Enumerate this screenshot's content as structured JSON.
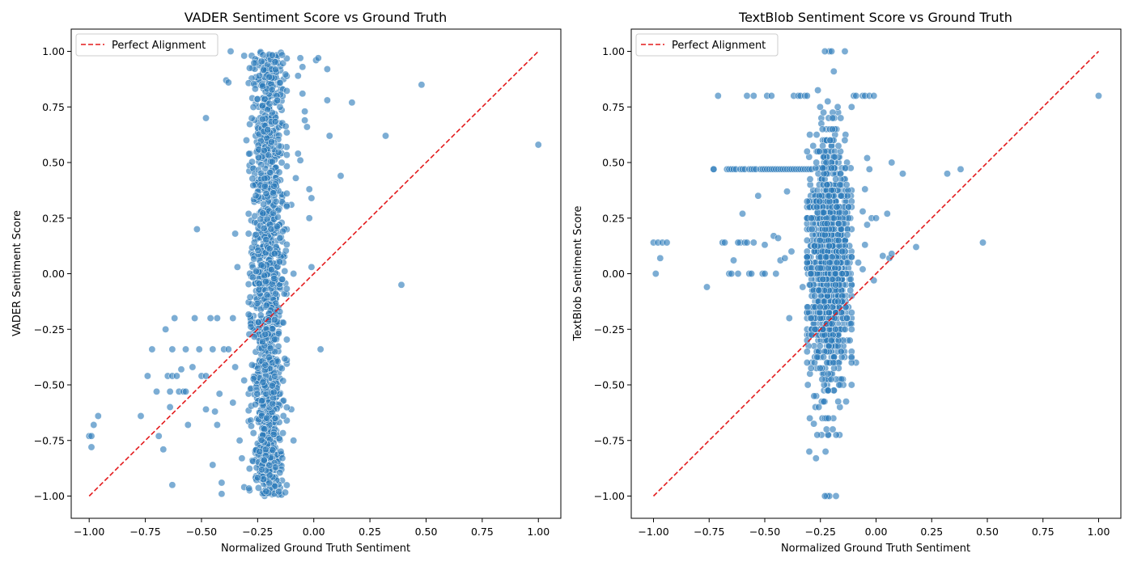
{
  "chart_data": [
    {
      "type": "scatter",
      "title": "VADER Sentiment Score vs Ground Truth",
      "xlabel": "Normalized Ground Truth Sentiment",
      "ylabel": "VADER Sentiment Score",
      "xlim": [
        -1.08,
        1.1
      ],
      "ylim": [
        -1.1,
        1.1
      ],
      "xticks": [
        "−1.00",
        "−0.75",
        "−0.50",
        "−0.25",
        "0.00",
        "0.25",
        "0.50",
        "0.75",
        "1.00"
      ],
      "yticks": [
        "−1.00",
        "−0.75",
        "−0.50",
        "−0.25",
        "0.00",
        "0.25",
        "0.50",
        "0.75",
        "1.00"
      ],
      "grid": false,
      "legend": {
        "position": "top-left",
        "entries": [
          "Perfect Alignment"
        ]
      },
      "reference_line": {
        "name": "Perfect Alignment",
        "style": "dashed",
        "color": "#e31a1c",
        "from": [
          -1,
          -1
        ],
        "to": [
          1,
          1
        ]
      },
      "point_color": "#2b7bba",
      "series": [
        {
          "points": [
            [
              -1.0,
              -0.73
            ],
            [
              -0.99,
              -0.78
            ],
            [
              -0.98,
              -0.68
            ],
            [
              -0.96,
              -0.64
            ],
            [
              -0.99,
              -0.73
            ],
            [
              -0.77,
              -0.64
            ],
            [
              -0.74,
              -0.46
            ],
            [
              -0.7,
              -0.53
            ],
            [
              -0.69,
              -0.73
            ],
            [
              -0.67,
              -0.79
            ],
            [
              -0.65,
              -0.46
            ],
            [
              -0.64,
              -0.53
            ],
            [
              -0.64,
              -0.6
            ],
            [
              -0.63,
              -0.46
            ],
            [
              -0.63,
              -0.95
            ],
            [
              -0.61,
              -0.46
            ],
            [
              -0.6,
              -0.53
            ],
            [
              -0.58,
              -0.53
            ],
            [
              -0.57,
              -0.53
            ],
            [
              -0.56,
              -0.68
            ],
            [
              -0.54,
              -0.42
            ],
            [
              -0.53,
              -0.2
            ],
            [
              -0.52,
              0.2
            ],
            [
              -0.51,
              -0.34
            ],
            [
              -0.5,
              -0.46
            ],
            [
              -0.48,
              0.7
            ],
            [
              -0.48,
              -0.61
            ],
            [
              -0.46,
              -0.2
            ],
            [
              -0.45,
              -0.86
            ],
            [
              -0.43,
              -0.68
            ],
            [
              -0.42,
              -0.54
            ],
            [
              -0.41,
              -0.94
            ],
            [
              -0.41,
              -0.99
            ],
            [
              -0.4,
              -0.34
            ],
            [
              -0.39,
              0.87
            ],
            [
              -0.38,
              -0.34
            ],
            [
              -0.38,
              0.86
            ],
            [
              -0.37,
              1.0
            ],
            [
              -0.36,
              -0.2
            ],
            [
              -0.35,
              -0.42
            ],
            [
              -0.35,
              0.18
            ],
            [
              -0.34,
              0.03
            ],
            [
              -0.33,
              -0.75
            ],
            [
              -0.32,
              -0.83
            ],
            [
              -0.31,
              0.98
            ],
            [
              -0.31,
              -0.96
            ],
            [
              -0.3,
              0.6
            ],
            [
              -0.29,
              -0.54
            ],
            [
              -0.43,
              -0.2
            ],
            [
              -0.45,
              -0.34
            ],
            [
              -0.63,
              -0.34
            ],
            [
              -0.57,
              -0.34
            ],
            [
              -0.72,
              -0.34
            ],
            [
              -0.59,
              -0.43
            ],
            [
              -0.66,
              -0.25
            ],
            [
              -0.62,
              -0.2
            ],
            [
              -0.36,
              -0.58
            ],
            [
              -0.31,
              -0.48
            ],
            [
              -0.44,
              -0.62
            ],
            [
              -0.48,
              -0.46
            ],
            [
              -0.06,
              0.97
            ],
            [
              -0.05,
              0.93
            ],
            [
              0.01,
              0.96
            ],
            [
              0.02,
              0.97
            ],
            [
              0.06,
              0.92
            ],
            [
              0.06,
              0.78
            ],
            [
              0.07,
              0.62
            ],
            [
              0.17,
              0.77
            ],
            [
              0.12,
              0.44
            ],
            [
              0.32,
              0.62
            ],
            [
              0.48,
              0.85
            ],
            [
              1.0,
              0.58
            ],
            [
              0.39,
              -0.05
            ],
            [
              0.03,
              -0.34
            ],
            [
              -0.02,
              0.25
            ],
            [
              -0.01,
              0.03
            ],
            [
              -0.02,
              0.38
            ],
            [
              -0.01,
              0.34
            ],
            [
              -0.03,
              0.66
            ],
            [
              -0.06,
              0.51
            ],
            [
              -0.07,
              0.54
            ],
            [
              -0.05,
              0.81
            ],
            [
              -0.09,
              0.0
            ],
            [
              -0.1,
              -0.61
            ],
            [
              -0.09,
              -0.75
            ],
            [
              -0.1,
              0.31
            ],
            [
              -0.08,
              0.43
            ],
            [
              -0.04,
              0.69
            ],
            [
              -0.04,
              0.73
            ],
            [
              -0.07,
              0.89
            ]
          ]
        },
        {
          "name": "VADER dense band",
          "band": true,
          "x_range": [
            -0.29,
            -0.12
          ],
          "y_range": [
            -1.0,
            1.0
          ],
          "count": 1300
        }
      ]
    },
    {
      "type": "scatter",
      "title": "TextBlob Sentiment Score vs Ground Truth",
      "xlabel": "Normalized Ground Truth Sentiment",
      "ylabel": "TextBlob Sentiment Score",
      "xlim": [
        -1.1,
        1.1
      ],
      "ylim": [
        -1.1,
        1.1
      ],
      "xticks": [
        "−1.00",
        "−0.75",
        "−0.50",
        "−0.25",
        "0.00",
        "0.25",
        "0.50",
        "0.75",
        "1.00"
      ],
      "yticks": [
        "−1.00",
        "−0.75",
        "−0.50",
        "−0.25",
        "0.00",
        "0.25",
        "0.50",
        "0.75",
        "1.00"
      ],
      "grid": false,
      "legend": {
        "position": "top-left",
        "entries": [
          "Perfect Alignment"
        ]
      },
      "reference_line": {
        "name": "Perfect Alignment",
        "style": "dashed",
        "color": "#e31a1c",
        "from": [
          -1,
          -1
        ],
        "to": [
          1,
          1
        ]
      },
      "point_color": "#2b7bba",
      "series": [
        {
          "points": [
            [
              -1.0,
              0.14
            ],
            [
              -0.99,
              0.0
            ],
            [
              -0.98,
              0.14
            ],
            [
              -0.97,
              0.07
            ],
            [
              -0.96,
              0.14
            ],
            [
              -0.94,
              0.14
            ],
            [
              -0.76,
              -0.06
            ],
            [
              -0.73,
              0.47
            ],
            [
              -0.71,
              0.8
            ],
            [
              -0.69,
              0.14
            ],
            [
              -0.68,
              0.14
            ],
            [
              -0.66,
              0.0
            ],
            [
              -0.65,
              0.0
            ],
            [
              -0.64,
              0.06
            ],
            [
              -0.62,
              0.0
            ],
            [
              -0.61,
              0.14
            ],
            [
              -0.6,
              0.27
            ],
            [
              -0.59,
              0.14
            ],
            [
              -0.58,
              0.8
            ],
            [
              -0.57,
              0.0
            ],
            [
              -0.56,
              0.0
            ],
            [
              -0.55,
              0.8
            ],
            [
              -0.51,
              0.0
            ],
            [
              -0.5,
              0.0
            ],
            [
              -0.5,
              0.13
            ],
            [
              -0.49,
              0.8
            ],
            [
              -0.47,
              0.8
            ],
            [
              -0.46,
              0.17
            ],
            [
              -0.45,
              0.0
            ],
            [
              -0.44,
              0.16
            ],
            [
              -0.43,
              0.06
            ],
            [
              -0.41,
              0.07
            ],
            [
              -0.4,
              0.37
            ],
            [
              -0.39,
              -0.2
            ],
            [
              -0.38,
              0.1
            ],
            [
              -0.37,
              0.8
            ],
            [
              -0.35,
              0.8
            ],
            [
              -0.34,
              0.8
            ],
            [
              -0.33,
              -0.06
            ],
            [
              -0.32,
              0.8
            ],
            [
              -0.31,
              0.8
            ],
            [
              -0.3,
              -0.8
            ],
            [
              -0.29,
              -0.4
            ],
            [
              -0.28,
              0.36
            ],
            [
              -0.27,
              -0.83
            ],
            [
              -0.53,
              0.35
            ],
            [
              -0.58,
              0.14
            ],
            [
              -0.55,
              0.14
            ],
            [
              -0.62,
              0.14
            ],
            [
              -0.73,
              0.47
            ],
            [
              -0.67,
              0.47
            ],
            [
              -0.66,
              0.47
            ],
            [
              -0.65,
              0.47
            ],
            [
              -0.64,
              0.47
            ],
            [
              -0.63,
              0.47
            ],
            [
              -0.61,
              0.47
            ],
            [
              -0.6,
              0.47
            ],
            [
              -0.59,
              0.47
            ],
            [
              -0.57,
              0.47
            ],
            [
              -0.56,
              0.47
            ],
            [
              -0.55,
              0.47
            ],
            [
              -0.54,
              0.47
            ],
            [
              -0.52,
              0.47
            ],
            [
              -0.51,
              0.47
            ],
            [
              -0.5,
              0.47
            ],
            [
              -0.49,
              0.47
            ],
            [
              -0.48,
              0.47
            ],
            [
              -0.47,
              0.47
            ],
            [
              -0.46,
              0.47
            ],
            [
              -0.45,
              0.47
            ],
            [
              -0.44,
              0.47
            ],
            [
              -0.43,
              0.47
            ],
            [
              -0.42,
              0.47
            ],
            [
              -0.41,
              0.47
            ],
            [
              -0.4,
              0.47
            ],
            [
              -0.39,
              0.47
            ],
            [
              -0.38,
              0.47
            ],
            [
              -0.37,
              0.47
            ],
            [
              -0.36,
              0.47
            ],
            [
              -0.35,
              0.47
            ],
            [
              -0.34,
              0.47
            ],
            [
              -0.33,
              0.47
            ],
            [
              -0.32,
              0.47
            ],
            [
              -0.31,
              0.47
            ],
            [
              -0.3,
              0.47
            ],
            [
              -0.29,
              0.47
            ],
            [
              -0.1,
              0.8
            ],
            [
              -0.09,
              0.8
            ],
            [
              -0.06,
              0.8
            ],
            [
              -0.05,
              0.8
            ],
            [
              -0.03,
              0.8
            ],
            [
              -0.01,
              0.8
            ],
            [
              -0.04,
              0.52
            ],
            [
              -0.03,
              0.47
            ],
            [
              -0.05,
              0.38
            ],
            [
              -0.06,
              0.28
            ],
            [
              -0.04,
              0.22
            ],
            [
              -0.02,
              0.25
            ],
            [
              0.0,
              0.25
            ],
            [
              0.05,
              0.27
            ],
            [
              0.07,
              0.5
            ],
            [
              0.12,
              0.45
            ],
            [
              0.18,
              0.12
            ],
            [
              0.32,
              0.45
            ],
            [
              0.38,
              0.47
            ],
            [
              0.48,
              0.14
            ],
            [
              1.0,
              0.8
            ],
            [
              0.03,
              0.08
            ],
            [
              0.06,
              0.07
            ],
            [
              0.07,
              0.09
            ],
            [
              -0.01,
              -0.03
            ],
            [
              -0.05,
              0.13
            ],
            [
              -0.06,
              0.02
            ],
            [
              -0.08,
              0.05
            ],
            [
              -0.09,
              -0.4
            ],
            [
              -0.11,
              -0.38
            ],
            [
              -0.13,
              -0.2
            ],
            [
              -0.22,
              -1.0
            ],
            [
              -0.21,
              -1.0
            ],
            [
              -0.18,
              -1.0
            ],
            [
              -0.23,
              -1.0
            ],
            [
              -0.21,
              1.0
            ],
            [
              -0.2,
              1.0
            ],
            [
              -0.23,
              1.0
            ],
            [
              -0.14,
              1.0
            ],
            [
              -0.19,
              0.91
            ]
          ]
        },
        {
          "name": "TextBlob dense band",
          "band": true,
          "x_range": [
            -0.31,
            -0.11
          ],
          "y_range": [
            -0.8,
            0.85
          ],
          "count": 1300
        }
      ]
    }
  ]
}
